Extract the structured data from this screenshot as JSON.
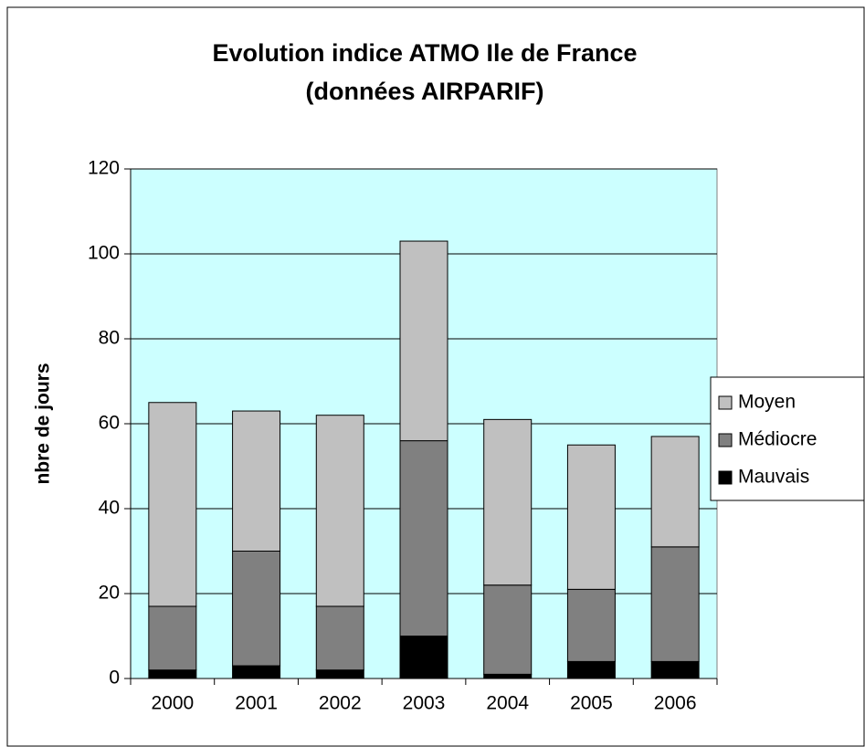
{
  "chart_data": {
    "type": "stacked_bar",
    "title": "Evolution indice ATMO Ile de France",
    "subtitle": "(données AIRPARIF)",
    "y_label": "nbre de jours",
    "categories": [
      "2000",
      "2001",
      "2002",
      "2003",
      "2004",
      "2005",
      "2006"
    ],
    "series": [
      {
        "name": "Mauvais",
        "color": "#000000",
        "values": [
          2,
          3,
          2,
          10,
          1,
          4,
          4
        ]
      },
      {
        "name": "Médiocre",
        "color": "#808080",
        "values": [
          15,
          27,
          15,
          46,
          21,
          17,
          27
        ]
      },
      {
        "name": "Moyen",
        "color": "#c0c0c0",
        "values": [
          48,
          33,
          45,
          47,
          39,
          34,
          26
        ]
      }
    ],
    "ylim": [
      0,
      120
    ],
    "yticks": [
      0,
      20,
      40,
      60,
      80,
      100,
      120
    ],
    "grid": true,
    "plot_background": "#ccffff",
    "legend": "right"
  }
}
